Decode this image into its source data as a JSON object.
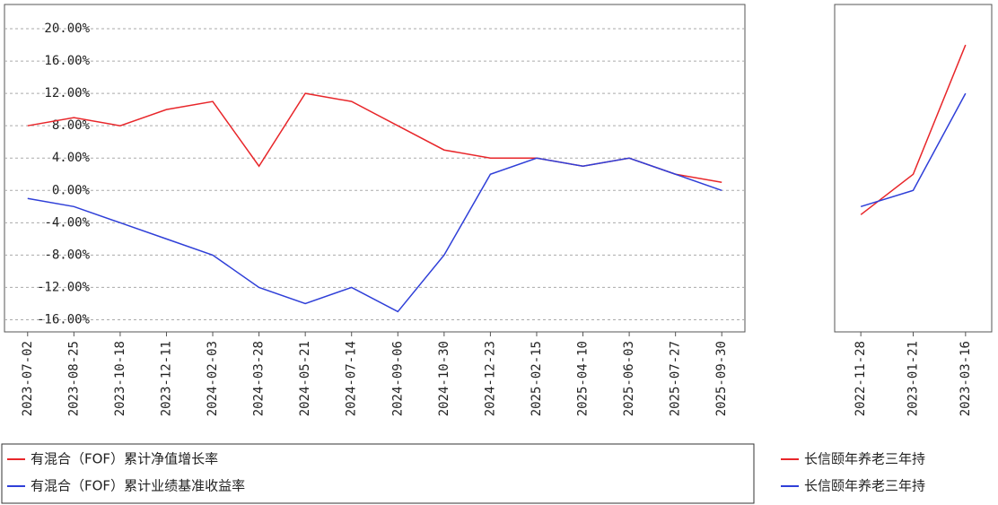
{
  "chart_data": [
    {
      "type": "line",
      "categories": [
        "2023-07-02",
        "2023-08-25",
        "2023-10-18",
        "2023-12-11",
        "2024-02-03",
        "2024-03-28",
        "2024-05-21",
        "2024-07-14",
        "2024-09-06",
        "2024-10-30",
        "2024-12-23",
        "2025-02-15",
        "2025-04-10",
        "2025-06-03",
        "2025-07-27",
        "2025-09-30"
      ],
      "series": [
        {
          "name": "有混合（FOF）累计净值增长率",
          "color": "#e8262a",
          "values": [
            8,
            9,
            8,
            10,
            11,
            3,
            12,
            11,
            8,
            5,
            4,
            4,
            3,
            4,
            2,
            1
          ]
        },
        {
          "name": "有混合（FOF）累计业绩基准收益率",
          "color": "#2f3fd8",
          "values": [
            -1,
            -2,
            -4,
            -6,
            -8,
            -12,
            -14,
            -12,
            -15,
            -8,
            2,
            4,
            3,
            4,
            2,
            0
          ]
        }
      ],
      "ylim": [
        -17.5,
        23
      ],
      "yticks": [
        {
          "value": -16,
          "label": "-16.00%"
        },
        {
          "value": -12,
          "label": "-12.00%"
        },
        {
          "value": -8,
          "label": "-8.00%"
        },
        {
          "value": -4,
          "label": "-4.00%"
        },
        {
          "value": 0,
          "label": "0.00%"
        },
        {
          "value": 4,
          "label": "4.00%"
        },
        {
          "value": 8,
          "label": "8.00%"
        },
        {
          "value": 12,
          "label": "12.00%"
        },
        {
          "value": 16,
          "label": "16.00%"
        },
        {
          "value": 20,
          "label": "20.00%"
        }
      ],
      "grid": true
    },
    {
      "type": "line",
      "categories": [
        "2022-11-28",
        "2023-01-21",
        "2023-03-16"
      ],
      "series": [
        {
          "name": "长信颐年养老三年持",
          "color": "#e8262a",
          "values": [
            -3,
            2,
            18
          ]
        },
        {
          "name": "长信颐年养老三年持",
          "color": "#2f3fd8",
          "values": [
            -2,
            0,
            12
          ]
        }
      ],
      "ylim": [
        -17.5,
        23
      ]
    }
  ]
}
